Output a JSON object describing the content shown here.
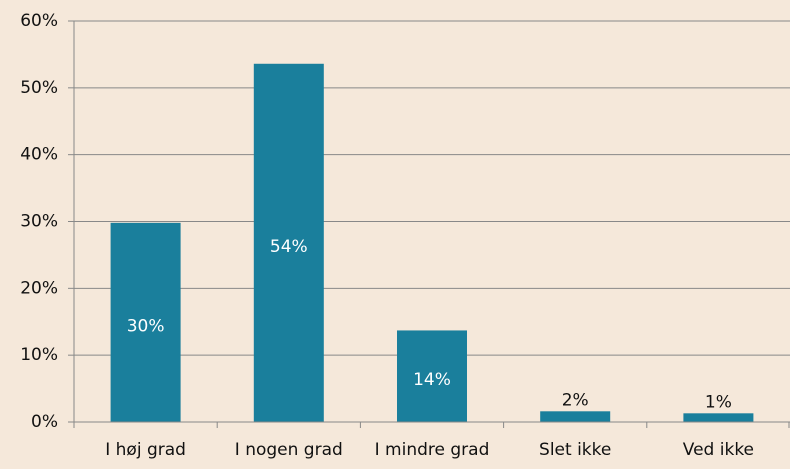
{
  "chart_data": {
    "type": "bar",
    "categories": [
      "I høj grad",
      "I nogen grad",
      "I mindre grad",
      "Slet ikke",
      "Ved ikke"
    ],
    "values": [
      29.8,
      53.6,
      13.7,
      1.6,
      1.3
    ],
    "value_labels": [
      "30%",
      "54%",
      "14%",
      "2%",
      "1%"
    ],
    "color": "#1a7f9c",
    "ylim": [
      0,
      60
    ],
    "yticks": [
      {
        "value": 0,
        "label": "0%"
      },
      {
        "value": 10,
        "label": "10%"
      },
      {
        "value": 20,
        "label": "20%"
      },
      {
        "value": 30,
        "label": "30%"
      },
      {
        "value": 40,
        "label": "40%"
      },
      {
        "value": 50,
        "label": "50%"
      },
      {
        "value": 60,
        "label": "60%"
      }
    ],
    "grid": true
  }
}
